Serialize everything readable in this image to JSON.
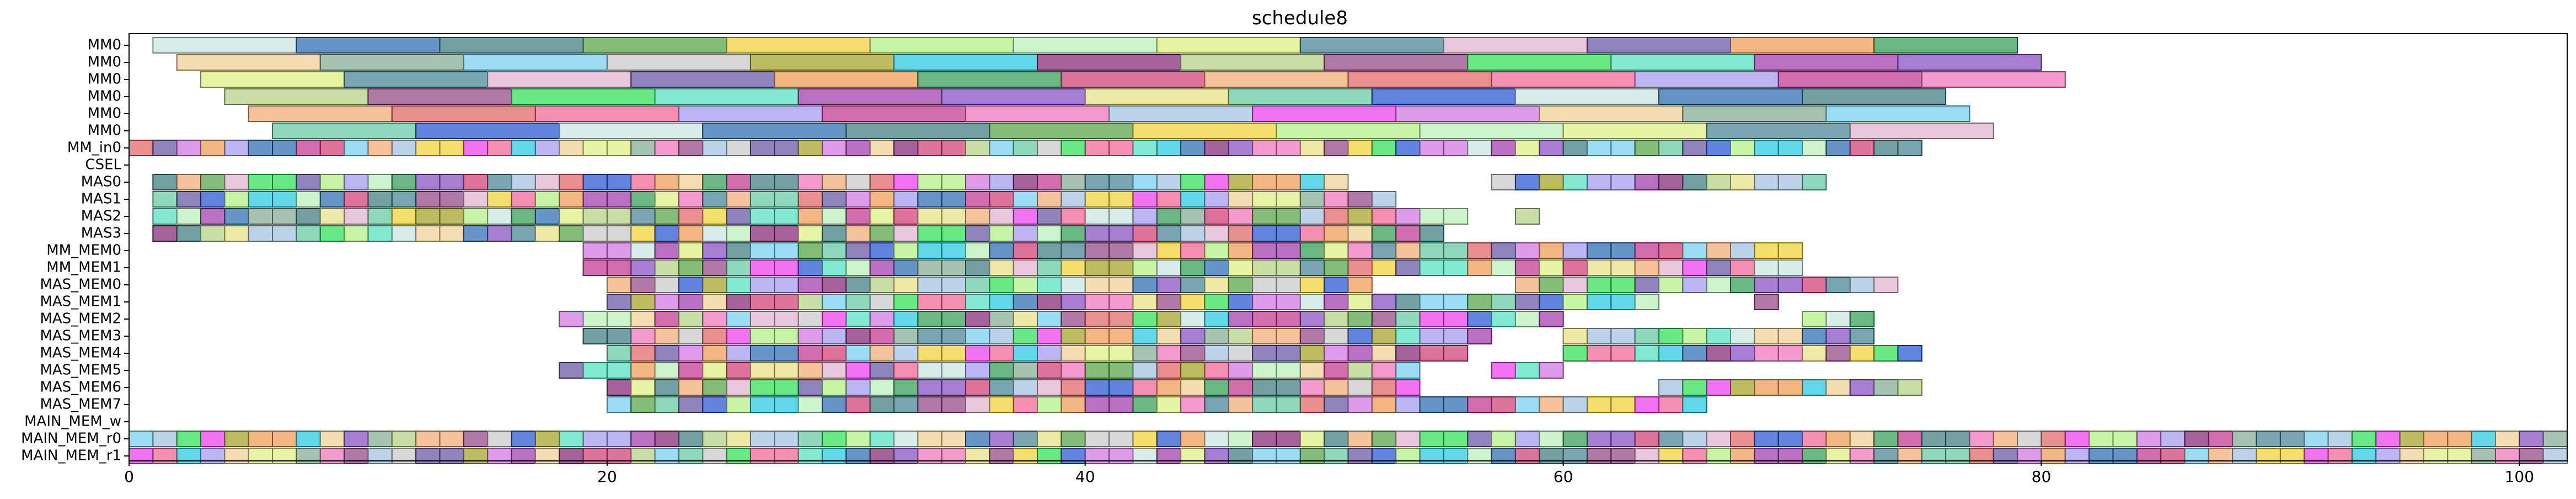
{
  "chart_data": {
    "type": "gantt",
    "title": "schedule8",
    "xlabel": "",
    "ylabel": "",
    "xlim": [
      0,
      102
    ],
    "x_ticks": [
      0,
      20,
      40,
      60,
      80,
      100
    ],
    "grid": false,
    "legend": "none",
    "bar_alpha": 0.7,
    "rows": [
      "MM0",
      "MM0",
      "MM0",
      "MM0",
      "MM0",
      "MM0",
      "MM_in0",
      "CSEL",
      "MAS0",
      "MAS1",
      "MAS2",
      "MAS3",
      "MM_MEM0",
      "MM_MEM1",
      "MAS_MEM0",
      "MAS_MEM1",
      "MAS_MEM2",
      "MAS_MEM3",
      "MAS_MEM4",
      "MAS_MEM5",
      "MAS_MEM6",
      "MAS_MEM7",
      "MAIN_MEM_w",
      "MAIN_MEM_r0",
      "MAIN_MEM_r1"
    ],
    "palette": [
      "#c8e6e0",
      "#20c8e0",
      "#a098f0",
      "#b8f0b8",
      "#9c34a8",
      "#f0d090",
      "#2e9a50",
      "#2868b0",
      "#802070",
      "#c0308c",
      "#dcf07c",
      "#8048c0",
      "#80a890",
      "#d03870",
      "#38787c",
      "#b0d080",
      "#f070b8",
      "#408090",
      "#e8e080",
      "#70d0f0",
      "#f0a870",
      "#50a040",
      "#904080",
      "#a0c0e0",
      "#e0b0d0",
      "#60c8a0",
      "#c8c8c8",
      "#e06060",
      "#f0d030",
      "#28e050",
      "#ec38ec",
      "#6050a0",
      "#2050d0",
      "#a0a020",
      "#f06090",
      "#b0f080",
      "#50e0c0",
      "#d070e0",
      "#f09850"
    ],
    "long_rows": [
      {
        "row": 0,
        "starts": [
          1,
          7,
          13,
          19,
          25,
          31,
          37,
          43,
          49,
          55,
          61,
          67,
          73
        ],
        "durations": [
          6,
          6,
          6,
          6,
          6,
          6,
          6,
          6,
          6,
          6,
          6,
          6,
          6
        ]
      },
      {
        "row": 1,
        "starts": [
          2,
          8,
          14,
          20,
          26,
          32,
          38,
          44,
          50,
          56,
          62,
          68,
          74
        ],
        "durations": [
          6,
          6,
          6,
          6,
          6,
          6,
          6,
          6,
          6,
          6,
          6,
          6,
          6
        ]
      },
      {
        "row": 2,
        "starts": [
          3,
          9,
          15,
          21,
          27,
          33,
          39,
          45,
          51,
          57,
          63,
          69,
          75
        ],
        "durations": [
          6,
          6,
          6,
          6,
          6,
          6,
          6,
          6,
          6,
          6,
          6,
          6,
          6
        ]
      },
      {
        "row": 3,
        "starts": [
          4,
          10,
          16,
          22,
          28,
          34,
          40,
          46,
          52,
          58,
          64,
          70
        ],
        "durations": [
          6,
          6,
          6,
          6,
          6,
          6,
          6,
          6,
          6,
          6,
          6,
          6
        ]
      },
      {
        "row": 4,
        "starts": [
          5,
          11,
          17,
          23,
          29,
          35,
          41,
          47,
          53,
          59,
          65,
          71
        ],
        "durations": [
          6,
          6,
          6,
          6,
          6,
          6,
          6,
          6,
          6,
          6,
          6,
          6
        ]
      },
      {
        "row": 5,
        "starts": [
          6,
          12,
          18,
          24,
          30,
          36,
          42,
          48,
          54,
          60,
          66,
          72
        ],
        "durations": [
          6,
          6,
          6,
          6,
          6,
          6,
          6,
          6,
          6,
          6,
          6,
          6
        ]
      }
    ],
    "unit_rows": [
      {
        "row": 6,
        "ranges": [
          [
            0,
            75
          ]
        ]
      },
      {
        "row": 7,
        "ranges": []
      },
      {
        "row": 8,
        "ranges": [
          [
            1,
            51
          ],
          [
            57,
            71
          ]
        ]
      },
      {
        "row": 9,
        "ranges": [
          [
            1,
            53
          ]
        ]
      },
      {
        "row": 10,
        "ranges": [
          [
            1,
            56
          ],
          [
            58,
            59
          ]
        ]
      },
      {
        "row": 11,
        "ranges": [
          [
            1,
            55
          ]
        ]
      },
      {
        "row": 12,
        "ranges": [
          [
            19,
            70
          ]
        ]
      },
      {
        "row": 13,
        "ranges": [
          [
            19,
            70
          ]
        ]
      },
      {
        "row": 14,
        "ranges": [
          [
            20,
            52
          ],
          [
            58,
            74
          ]
        ]
      },
      {
        "row": 15,
        "ranges": [
          [
            20,
            64
          ],
          [
            68,
            69
          ]
        ]
      },
      {
        "row": 16,
        "ranges": [
          [
            18,
            60
          ],
          [
            70,
            73
          ]
        ]
      },
      {
        "row": 17,
        "ranges": [
          [
            19,
            57
          ],
          [
            60,
            73
          ]
        ]
      },
      {
        "row": 18,
        "ranges": [
          [
            20,
            56
          ],
          [
            60,
            75
          ]
        ]
      },
      {
        "row": 19,
        "ranges": [
          [
            18,
            54
          ],
          [
            57,
            60
          ]
        ]
      },
      {
        "row": 20,
        "ranges": [
          [
            20,
            54
          ],
          [
            64,
            75
          ]
        ]
      },
      {
        "row": 21,
        "ranges": [
          [
            20,
            56
          ],
          [
            56,
            66
          ]
        ]
      },
      {
        "row": 22,
        "ranges": []
      },
      {
        "row": 23,
        "ranges": [
          [
            0,
            102
          ]
        ]
      },
      {
        "row": 24,
        "ranges": [
          [
            0,
            102
          ]
        ]
      }
    ]
  }
}
